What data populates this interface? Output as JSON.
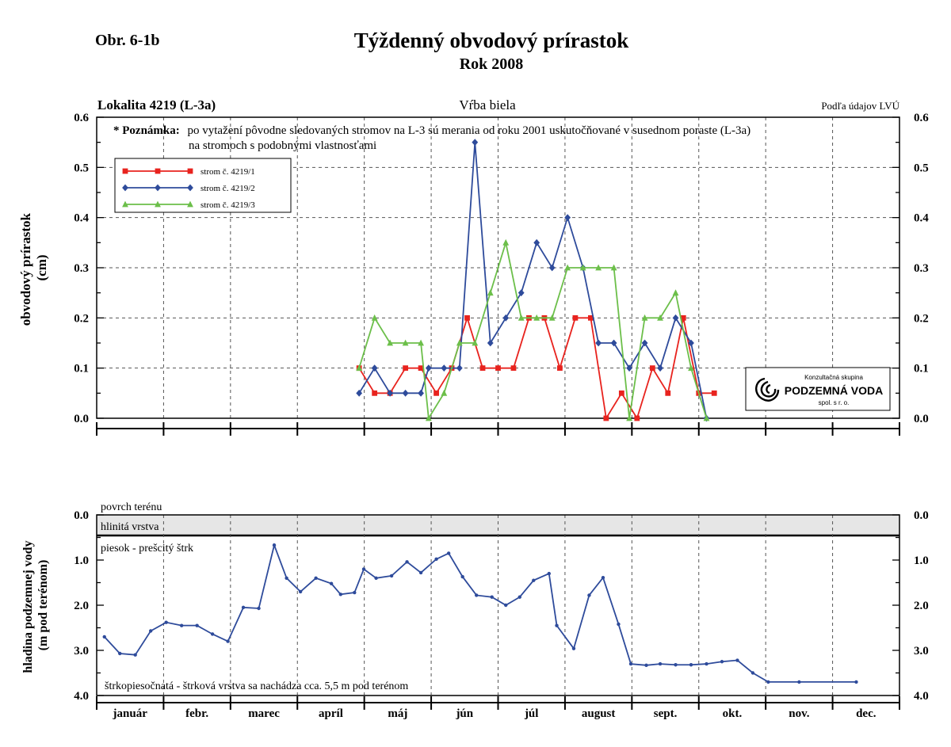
{
  "header": {
    "fig_label": "Obr. 6-1b",
    "title": "Týždenný obvodový prírastok",
    "subtitle": "Rok 2008"
  },
  "colors": {
    "series1": "#e8231e",
    "series2": "#2e4b9b",
    "series3": "#6cbf4a",
    "groundwater": "#2e4b9b",
    "clay_fill": "#e6e6e6"
  },
  "chart_data": [
    {
      "type": "line",
      "location_label": "Lokalita 4219 (L-3a)",
      "species_label": "Vŕba biela",
      "source_label": "Podľa údajov LVÚ",
      "note_bold": "* Poznámka:",
      "note_line1": "po vytažení pôvodne sledovaných stromov na L-3 sú merania od roku 2001 uskutočňované v susednom poraste (L-3a)",
      "note_line2": "na stromoch s podobnými vlastnosťami",
      "ylabel_line1": "obvodový prírastok",
      "ylabel_line2": "(cm)",
      "ylim": [
        0,
        0.6
      ],
      "yticks": [
        "0.0",
        "0.1",
        "0.2",
        "0.3",
        "0.4",
        "0.5",
        "0.6"
      ],
      "months": [
        "január",
        "febr.",
        "marec",
        "apríl",
        "máj",
        "jún",
        "júl",
        "august",
        "sept.",
        "okt.",
        "nov.",
        "dec."
      ],
      "x_unit": "week of year 2008",
      "series": [
        {
          "name": "strom č. 4219/1",
          "marker": "square",
          "x": [
            17.5,
            18.5,
            19.5,
            20.5,
            21.5,
            22.5,
            23.5,
            24.5,
            25.5,
            26.5,
            27.5,
            28.5,
            29.5,
            30.5,
            31.5,
            32.5,
            33.5,
            34.5,
            35.5,
            36.5,
            37.5,
            38.5,
            39.5,
            40.5
          ],
          "values": [
            0.1,
            0.05,
            0.05,
            0.1,
            0.1,
            0.05,
            0.1,
            0.2,
            0.1,
            0.1,
            0.1,
            0.2,
            0.2,
            0.1,
            0.2,
            0.2,
            0.0,
            0.05,
            0.0,
            0.1,
            0.05,
            0.2,
            0.05,
            0.05
          ]
        },
        {
          "name": "strom č. 4219/2",
          "marker": "diamond",
          "x": [
            17.5,
            18.5,
            19.5,
            20.5,
            21.5,
            22.0,
            23.0,
            24.0,
            25.0,
            26.0,
            27.0,
            28.0,
            29.0,
            30.0,
            31.0,
            32.0,
            33.0,
            34.0,
            35.0,
            36.0,
            37.0,
            38.0,
            39.0,
            40.0
          ],
          "values": [
            0.05,
            0.1,
            0.05,
            0.05,
            0.05,
            0.1,
            0.1,
            0.1,
            0.55,
            0.15,
            0.2,
            0.25,
            0.35,
            0.3,
            0.4,
            0.3,
            0.15,
            0.15,
            0.1,
            0.15,
            0.1,
            0.2,
            0.15,
            0.0
          ]
        },
        {
          "name": "strom č. 4219/3",
          "marker": "triangle",
          "x": [
            17.5,
            18.5,
            19.5,
            20.5,
            21.5,
            22.0,
            23.0,
            24.0,
            25.0,
            26.0,
            27.0,
            28.0,
            29.0,
            30.0,
            31.0,
            32.0,
            33.0,
            34.0,
            35.0,
            36.0,
            37.0,
            38.0,
            39.0,
            40.0
          ],
          "values": [
            0.1,
            0.2,
            0.15,
            0.15,
            0.15,
            0.0,
            0.05,
            0.15,
            0.15,
            0.25,
            0.35,
            0.2,
            0.2,
            0.2,
            0.3,
            0.3,
            0.3,
            0.3,
            0.0,
            0.2,
            0.2,
            0.25,
            0.1,
            0.0
          ]
        }
      ],
      "grid": true,
      "legend_position": "top-left"
    },
    {
      "type": "line",
      "ylabel_line1": "hladina podzemnej vody",
      "ylabel_line2": "(m pod terénom)",
      "ylim": [
        0.0,
        4.0
      ],
      "y_inverted": true,
      "yticks": [
        "0.0",
        "1.0",
        "2.0",
        "3.0",
        "4.0"
      ],
      "surface_label": "povrch terénu",
      "clay_label": "hlinitá vrstva",
      "clay_depth_m": 0.45,
      "sand_label": "piesok - prešcitý štrk",
      "gravel_note": "štrkopiesočnatá - štrková vrstva sa nachádza cca. 5,5 m pod terénom",
      "series": [
        {
          "name": "",
          "x": [
            1,
            2,
            3,
            4,
            5,
            6,
            7,
            8,
            9,
            10,
            11,
            12,
            12.8,
            13.7,
            14.7,
            15.7,
            16.3,
            17.2,
            17.8,
            18.6,
            19.6,
            20.6,
            21.5,
            22.5,
            23.3,
            24.2,
            25.1,
            26.1,
            27.0,
            27.9,
            28.8,
            29.8,
            30.3,
            31.4,
            32.4,
            33.3,
            34.3,
            35.1,
            36.1,
            37.0,
            38.0,
            39.0,
            40.0,
            41.0,
            42.0,
            43.0,
            44.0,
            46.0,
            49.7
          ],
          "values": [
            2.7,
            3.07,
            3.1,
            2.57,
            2.38,
            2.45,
            2.45,
            2.64,
            2.8,
            2.05,
            2.07,
            0.67,
            1.4,
            1.7,
            1.4,
            1.52,
            1.76,
            1.72,
            1.2,
            1.4,
            1.35,
            1.04,
            1.28,
            0.98,
            0.85,
            1.37,
            1.78,
            1.82,
            2.0,
            1.82,
            1.45,
            1.3,
            2.45,
            2.96,
            1.78,
            1.39,
            2.42,
            3.3,
            3.33,
            3.3,
            3.32,
            3.32,
            3.3,
            3.25,
            3.22,
            3.5,
            3.7,
            3.7,
            3.7
          ]
        }
      ]
    }
  ],
  "logo": {
    "line1": "Konzultačná skupina",
    "line2": "PODZEMNÁ VODA",
    "line3": "spol. s r. o.",
    "icon": "water-spiral-icon"
  }
}
